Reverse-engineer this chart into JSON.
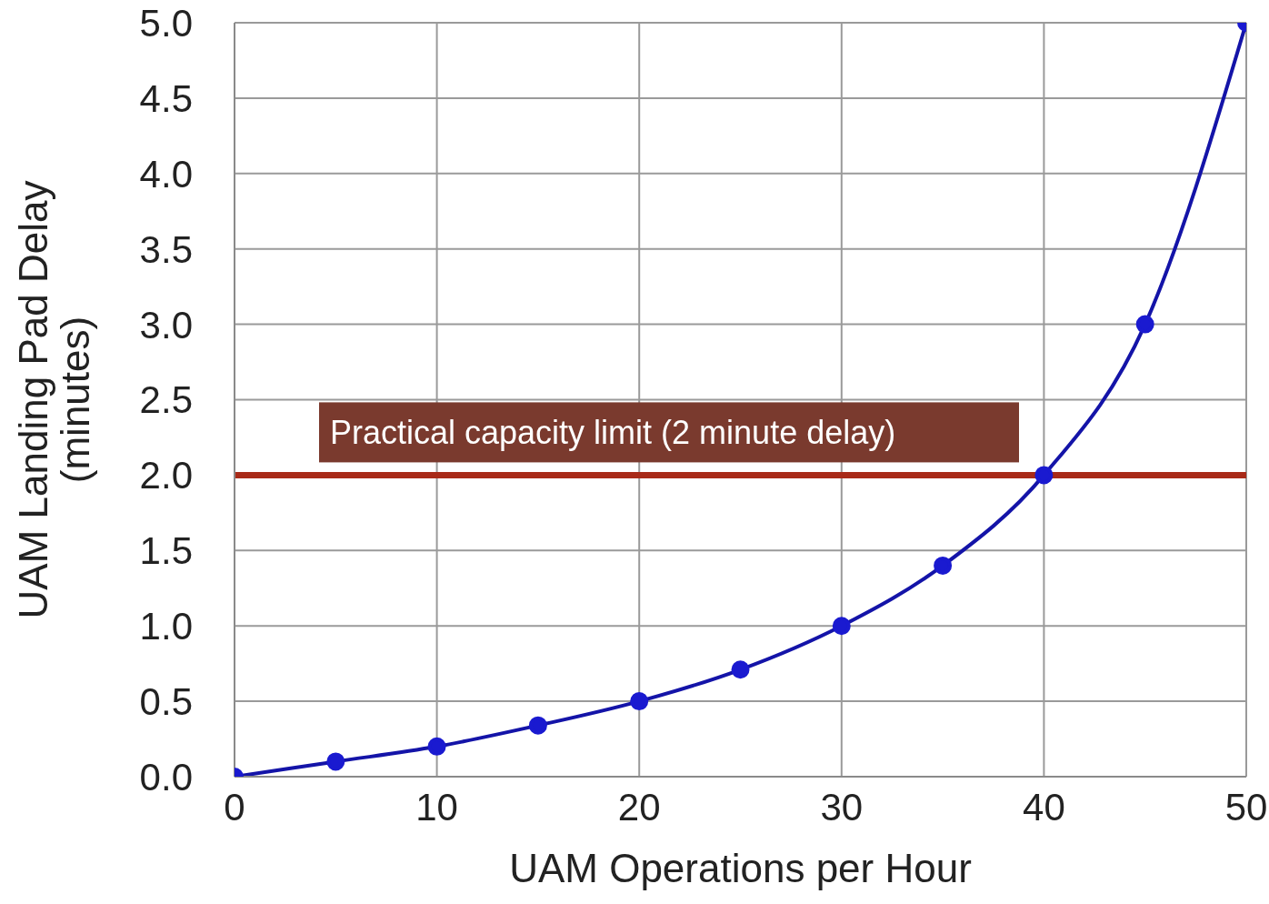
{
  "chart_data": {
    "type": "line",
    "xlabel": "UAM Operations per Hour",
    "ylabel": "UAM Landing Pad Delay\n(minutes)",
    "x": [
      0,
      5,
      10,
      15,
      20,
      25,
      30,
      35,
      40,
      45,
      50
    ],
    "series": [
      {
        "color": "#1414a8",
        "values": [
          0,
          0.1,
          0.2,
          0.34,
          0.5,
          0.71,
          1.0,
          1.4,
          2.0,
          3.0,
          5.0
        ]
      }
    ],
    "xlim": [
      0,
      50
    ],
    "xticks": [
      0,
      10,
      20,
      30,
      40,
      50
    ],
    "ylim": [
      0,
      5
    ],
    "yticks": [
      {
        "value": 0,
        "label": "0.0"
      },
      {
        "value": 0.5,
        "label": "0.5"
      },
      {
        "value": 1,
        "label": "1.0"
      },
      {
        "value": 1.5,
        "label": "1.5"
      },
      {
        "value": 2,
        "label": "2.0"
      },
      {
        "value": 2.5,
        "label": "2.5"
      },
      {
        "value": 3,
        "label": "3.0"
      },
      {
        "value": 3.5,
        "label": "3.5"
      },
      {
        "value": 4,
        "label": "4.0"
      },
      {
        "value": 4.5,
        "label": "4.5"
      },
      {
        "value": 5,
        "label": "5.0"
      }
    ],
    "ref_lines": [
      {
        "axis": "y",
        "value": 2,
        "label": "Practical capacity limit (2 minute delay)",
        "color": "#a82a18"
      }
    ],
    "grid": true,
    "legend": false,
    "marker": "circle",
    "line_style": "solid"
  }
}
